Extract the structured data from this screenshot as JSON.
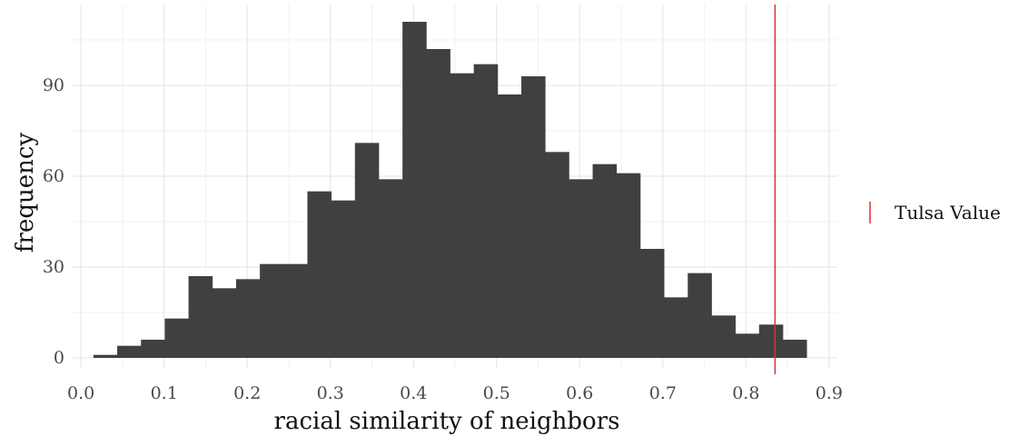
{
  "chart_data": {
    "type": "bar",
    "subtype": "histogram",
    "xlabel": "racial similarity of neighbors",
    "ylabel": "frequency",
    "xlim": [
      -0.01,
      0.91
    ],
    "ylim": [
      0,
      113
    ],
    "x_ticks": [
      0.0,
      0.1,
      0.2,
      0.3,
      0.4,
      0.5,
      0.6,
      0.7,
      0.8,
      0.9
    ],
    "x_tick_labels": [
      "0.0",
      "0.1",
      "0.2",
      "0.3",
      "0.4",
      "0.5",
      "0.6",
      "0.7",
      "0.8",
      "0.9"
    ],
    "y_ticks": [
      0,
      30,
      60,
      90
    ],
    "y_tick_labels": [
      "0",
      "30",
      "60",
      "90"
    ],
    "grid": true,
    "bin_edges": [
      0.015,
      0.0436,
      0.0722,
      0.1008,
      0.1294,
      0.158,
      0.1866,
      0.2152,
      0.2438,
      0.2724,
      0.301,
      0.3296,
      0.3582,
      0.3868,
      0.4154,
      0.444,
      0.4726,
      0.5012,
      0.5298,
      0.5584,
      0.587,
      0.6156,
      0.6442,
      0.6728,
      0.7014,
      0.73,
      0.7586,
      0.7872,
      0.8158,
      0.8444,
      0.873
    ],
    "counts": [
      1,
      4,
      6,
      13,
      27,
      23,
      26,
      31,
      31,
      55,
      52,
      71,
      59,
      111,
      102,
      94,
      97,
      87,
      93,
      68,
      59,
      64,
      61,
      36,
      20,
      28,
      14,
      8,
      11,
      6
    ],
    "bar_color": "#404040",
    "reference_line": {
      "x": 0.835,
      "color": "#e32b2b",
      "name": "Tulsa Value"
    },
    "legend": {
      "position": "right",
      "entries": [
        "Tulsa Value"
      ]
    }
  }
}
